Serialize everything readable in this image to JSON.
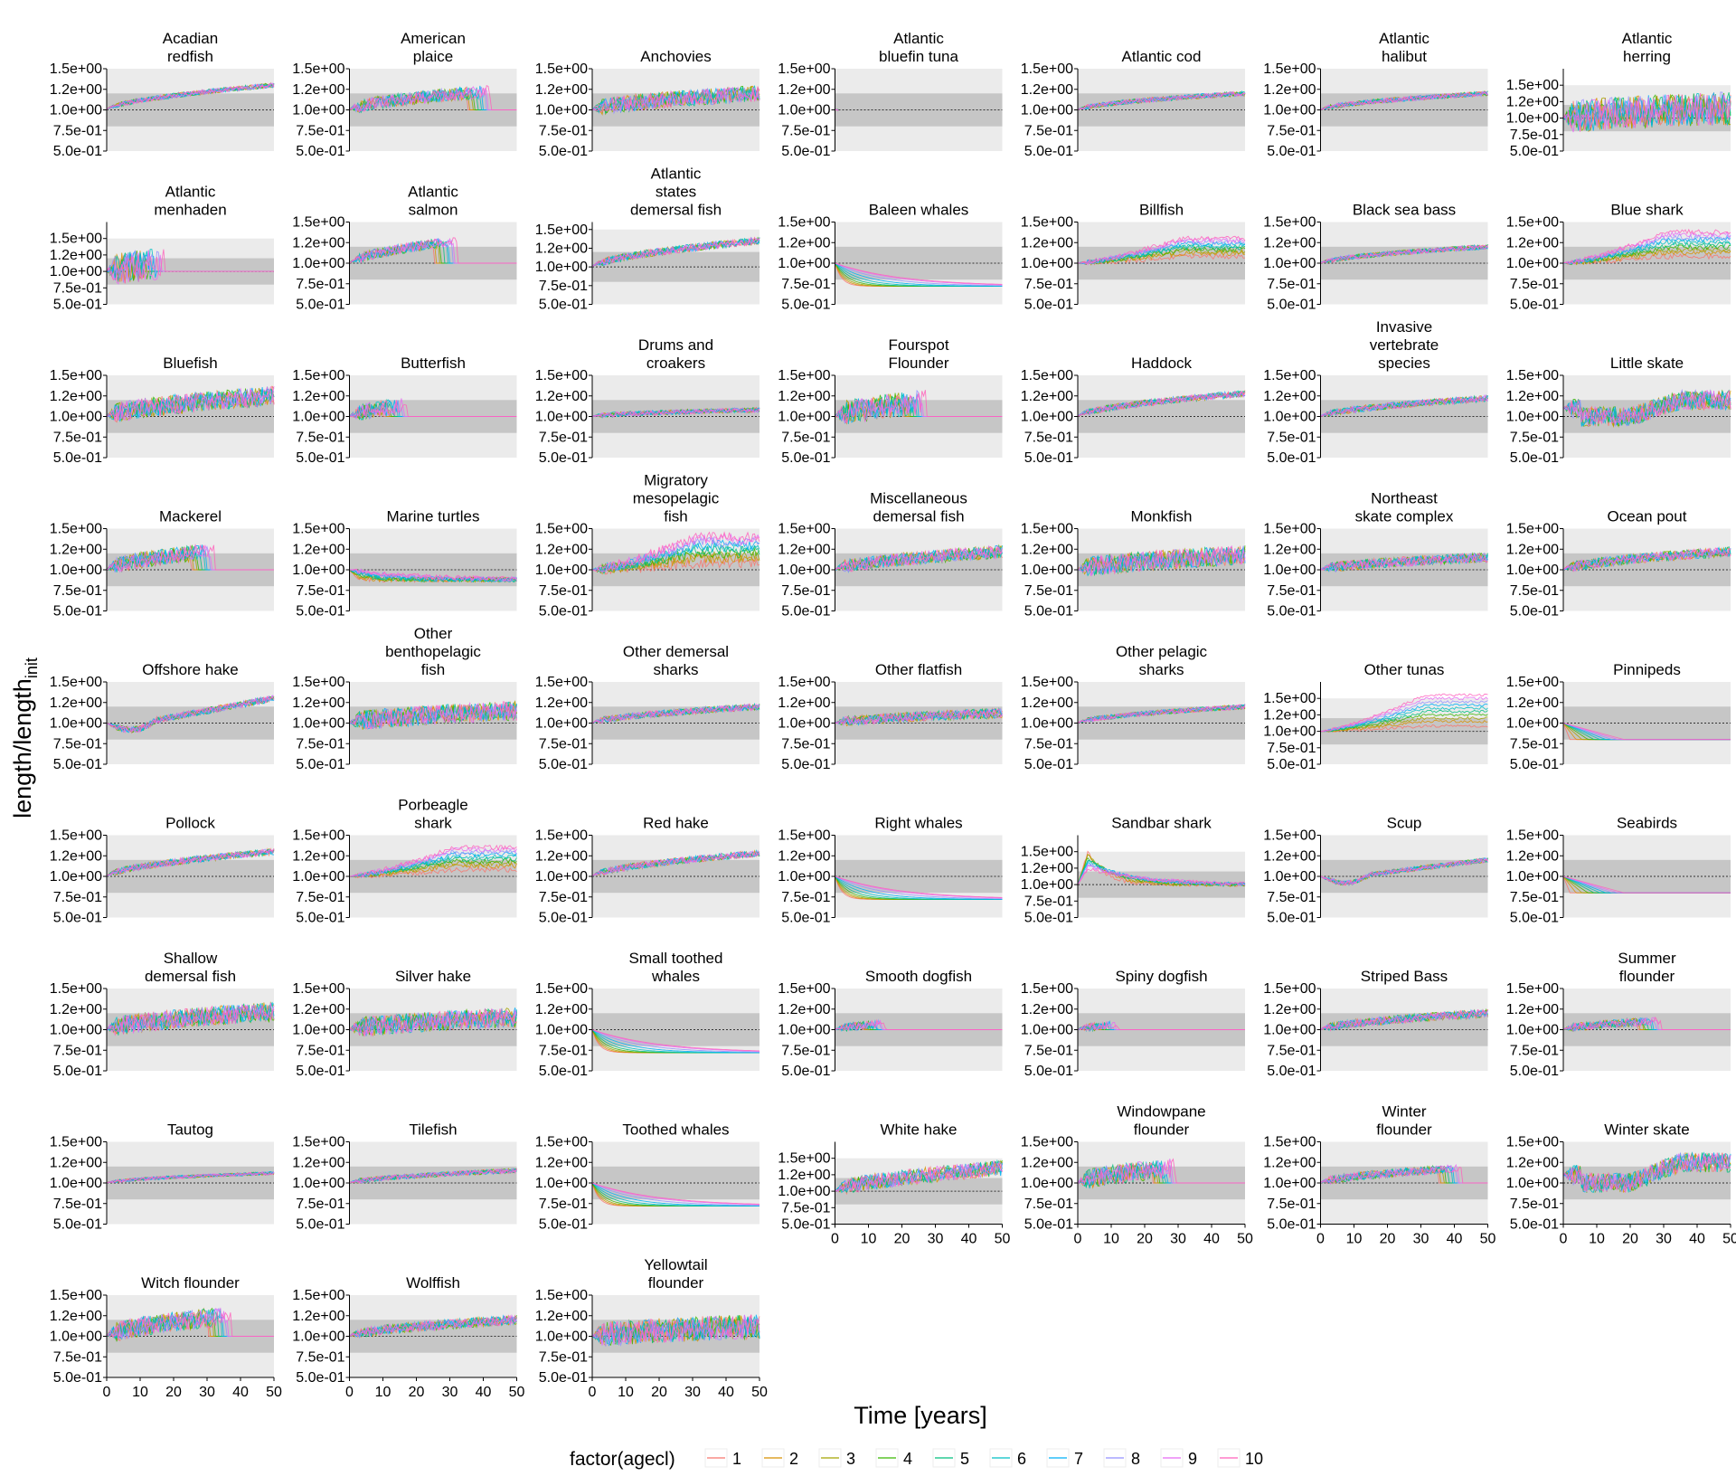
{
  "chart_data": {
    "type": "line",
    "facet": "wrap",
    "xlabel": "Time [years]",
    "ylabel_main": "length",
    "ylabel_den": "length",
    "ylabel_sub": "init",
    "xlim": [
      0,
      50
    ],
    "x_ticks": [
      "0",
      "10",
      "20",
      "30",
      "40",
      "50"
    ],
    "y_ticks_default": [
      "5.0e-01",
      "7.5e-01",
      "1.0e+00",
      "1.2e+00",
      "1.5e+00"
    ],
    "y_ticks_values": [
      0.5,
      0.75,
      1.0,
      1.25,
      1.5
    ],
    "bands": {
      "outer": [
        0.5,
        1.5
      ],
      "inner": [
        0.8,
        1.2
      ],
      "reference": 1.0
    },
    "legend": {
      "title": "factor(agecl)",
      "position": "bottom",
      "entries": [
        "1",
        "2",
        "3",
        "4",
        "5",
        "6",
        "7",
        "8",
        "9",
        "10"
      ],
      "colors": [
        "#F8766D",
        "#D89000",
        "#A3A500",
        "#39B600",
        "#00BF7D",
        "#00BFC4",
        "#00B0F6",
        "#9590FF",
        "#E76BF3",
        "#FF62BC"
      ]
    },
    "panels": [
      {
        "name": "Acadian\nredfish",
        "pattern": "rise",
        "end": 1.3,
        "noise": 0.03,
        "ylim": [
          0.5,
          1.5
        ]
      },
      {
        "name": "American\nplaice",
        "pattern": "rise_cut",
        "end": 1.25,
        "noise": 0.08,
        "cut": 35,
        "ylim": [
          0.5,
          1.5
        ]
      },
      {
        "name": "Anchovies",
        "pattern": "rise",
        "end": 1.2,
        "noise": 0.1,
        "ylim": [
          0.5,
          1.5
        ]
      },
      {
        "name": "Atlantic\nbluefin tuna",
        "pattern": "short",
        "end": 1.0,
        "noise": 0.03,
        "cut": 1,
        "ylim": [
          0.5,
          1.5
        ]
      },
      {
        "name": "Atlantic cod",
        "pattern": "rise",
        "end": 1.2,
        "noise": 0.03,
        "ylim": [
          0.5,
          1.5
        ]
      },
      {
        "name": "Atlantic\nhalibut",
        "pattern": "rise",
        "end": 1.2,
        "noise": 0.03,
        "ylim": [
          0.5,
          1.5
        ]
      },
      {
        "name": "Atlantic\nherring",
        "pattern": "rise",
        "end": 1.15,
        "noise": 0.25,
        "ylim": [
          0.5,
          1.75
        ]
      },
      {
        "name": "Atlantic\nmenhaden",
        "pattern": "rise_cut",
        "end": 1.2,
        "noise": 0.25,
        "cut": 10,
        "ylim": [
          0.5,
          1.75
        ]
      },
      {
        "name": "Atlantic\nsalmon",
        "pattern": "rise_cut",
        "end": 1.35,
        "noise": 0.06,
        "cut": 25,
        "ylim": [
          0.5,
          1.5
        ]
      },
      {
        "name": "Atlantic\nstates\ndemersal fish",
        "pattern": "rise",
        "end": 1.35,
        "noise": 0.05,
        "ylim": [
          0.5,
          1.6
        ]
      },
      {
        "name": "Baleen whales",
        "pattern": "decline",
        "end": 0.72,
        "noise": 0.0,
        "ylim": [
          0.5,
          1.5
        ]
      },
      {
        "name": "Billfish",
        "pattern": "fan_up",
        "end": 1.3,
        "noise": 0.03,
        "ylim": [
          0.5,
          1.5
        ]
      },
      {
        "name": "Black sea bass",
        "pattern": "rise",
        "end": 1.2,
        "noise": 0.03,
        "ylim": [
          0.5,
          1.5
        ]
      },
      {
        "name": "Blue shark",
        "pattern": "fan_up",
        "end": 1.38,
        "noise": 0.03,
        "ylim": [
          0.5,
          1.5
        ]
      },
      {
        "name": "Bluefish",
        "pattern": "rise",
        "end": 1.25,
        "noise": 0.12,
        "ylim": [
          0.5,
          1.5
        ]
      },
      {
        "name": "Butterfish",
        "pattern": "rise_cut",
        "end": 1.25,
        "noise": 0.1,
        "cut": 10,
        "ylim": [
          0.5,
          1.5
        ]
      },
      {
        "name": "Drums and\ncroakers",
        "pattern": "rise",
        "end": 1.08,
        "noise": 0.03,
        "ylim": [
          0.5,
          1.5
        ]
      },
      {
        "name": "Fourspot\nFlounder",
        "pattern": "rise_cut",
        "end": 1.25,
        "noise": 0.15,
        "cut": 20,
        "ylim": [
          0.5,
          1.5
        ]
      },
      {
        "name": "Haddock",
        "pattern": "rise",
        "end": 1.28,
        "noise": 0.04,
        "ylim": [
          0.5,
          1.5
        ]
      },
      {
        "name": "Invasive\nvertebrate\nspecies",
        "pattern": "rise",
        "end": 1.22,
        "noise": 0.04,
        "ylim": [
          0.5,
          1.5
        ]
      },
      {
        "name": "Little skate",
        "pattern": "gap",
        "end": 1.2,
        "noise": 0.12,
        "ylim": [
          0.5,
          1.5
        ]
      },
      {
        "name": "Mackerel",
        "pattern": "rise_cut",
        "end": 1.3,
        "noise": 0.1,
        "cut": 25,
        "ylim": [
          0.5,
          1.5
        ]
      },
      {
        "name": "Marine turtles",
        "pattern": "decline",
        "end": 0.88,
        "noise": 0.03,
        "ylim": [
          0.5,
          1.5
        ]
      },
      {
        "name": "Migratory\nmesopelagic\nfish",
        "pattern": "fan_up",
        "end": 1.4,
        "noise": 0.06,
        "ylim": [
          0.5,
          1.5
        ]
      },
      {
        "name": "Miscellaneous\ndemersal fish",
        "pattern": "rise",
        "end": 1.22,
        "noise": 0.08,
        "ylim": [
          0.5,
          1.5
        ]
      },
      {
        "name": "Monkfish",
        "pattern": "rise",
        "end": 1.18,
        "noise": 0.12,
        "ylim": [
          0.5,
          1.5
        ]
      },
      {
        "name": "Northeast\nskate complex",
        "pattern": "rise",
        "end": 1.15,
        "noise": 0.06,
        "ylim": [
          0.5,
          1.5
        ]
      },
      {
        "name": "Ocean pout",
        "pattern": "rise",
        "end": 1.22,
        "noise": 0.06,
        "ylim": [
          0.5,
          1.5
        ]
      },
      {
        "name": "Offshore hake",
        "pattern": "dip_rise",
        "end": 1.3,
        "noise": 0.04,
        "ylim": [
          0.5,
          1.5
        ]
      },
      {
        "name": "Other\nbenthopelagic\nfish",
        "pattern": "rise",
        "end": 1.15,
        "noise": 0.12,
        "ylim": [
          0.5,
          1.5
        ]
      },
      {
        "name": "Other demersal\nsharks",
        "pattern": "rise",
        "end": 1.2,
        "noise": 0.04,
        "ylim": [
          0.5,
          1.5
        ]
      },
      {
        "name": "Other flatfish",
        "pattern": "rise",
        "end": 1.12,
        "noise": 0.06,
        "ylim": [
          0.5,
          1.5
        ]
      },
      {
        "name": "Other pelagic\nsharks",
        "pattern": "rise",
        "end": 1.2,
        "noise": 0.03,
        "ylim": [
          0.5,
          1.5
        ]
      },
      {
        "name": "Other tunas",
        "pattern": "fan_up",
        "end": 1.55,
        "noise": 0.02,
        "ylim": [
          0.5,
          1.75
        ]
      },
      {
        "name": "Pinnipeds",
        "pattern": "decline_flat",
        "end": 0.8,
        "noise": 0.0,
        "ylim": [
          0.5,
          1.5
        ]
      },
      {
        "name": "Pollock",
        "pattern": "rise",
        "end": 1.3,
        "noise": 0.04,
        "ylim": [
          0.5,
          1.5
        ]
      },
      {
        "name": "Porbeagle\nshark",
        "pattern": "fan_up",
        "end": 1.35,
        "noise": 0.03,
        "ylim": [
          0.5,
          1.5
        ]
      },
      {
        "name": "Red hake",
        "pattern": "rise",
        "end": 1.28,
        "noise": 0.04,
        "ylim": [
          0.5,
          1.5
        ]
      },
      {
        "name": "Right whales",
        "pattern": "decline",
        "end": 0.72,
        "noise": 0.0,
        "ylim": [
          0.5,
          1.5
        ]
      },
      {
        "name": "Sandbar shark",
        "pattern": "peak_fall",
        "end": 1.0,
        "noise": 0.03,
        "ylim": [
          0.5,
          1.75
        ]
      },
      {
        "name": "Scup",
        "pattern": "dip_rise",
        "end": 1.2,
        "noise": 0.03,
        "ylim": [
          0.5,
          1.5
        ]
      },
      {
        "name": "Seabirds",
        "pattern": "decline_flat",
        "end": 0.8,
        "noise": 0.0,
        "ylim": [
          0.5,
          1.5
        ]
      },
      {
        "name": "Shallow\ndemersal fish",
        "pattern": "rise",
        "end": 1.22,
        "noise": 0.12,
        "ylim": [
          0.5,
          1.5
        ]
      },
      {
        "name": "Silver hake",
        "pattern": "rise",
        "end": 1.15,
        "noise": 0.12,
        "ylim": [
          0.5,
          1.5
        ]
      },
      {
        "name": "Small toothed\nwhales",
        "pattern": "decline",
        "end": 0.72,
        "noise": 0.0,
        "ylim": [
          0.5,
          1.5
        ]
      },
      {
        "name": "Smooth dogfish",
        "pattern": "rise_cut",
        "end": 1.15,
        "noise": 0.05,
        "cut": 8,
        "ylim": [
          0.5,
          1.5
        ]
      },
      {
        "name": "Spiny dogfish",
        "pattern": "rise_cut",
        "end": 1.15,
        "noise": 0.05,
        "cut": 5,
        "ylim": [
          0.5,
          1.5
        ]
      },
      {
        "name": "Striped Bass",
        "pattern": "rise",
        "end": 1.2,
        "noise": 0.05,
        "ylim": [
          0.5,
          1.5
        ]
      },
      {
        "name": "Summer\nflounder",
        "pattern": "rise_cut",
        "end": 1.15,
        "noise": 0.05,
        "cut": 22,
        "ylim": [
          0.5,
          1.5
        ]
      },
      {
        "name": "Tautog",
        "pattern": "rise",
        "end": 1.12,
        "noise": 0.02,
        "ylim": [
          0.5,
          1.5
        ]
      },
      {
        "name": "Tilefish",
        "pattern": "rise",
        "end": 1.15,
        "noise": 0.03,
        "ylim": [
          0.5,
          1.5
        ]
      },
      {
        "name": "Toothed whales",
        "pattern": "decline",
        "end": 0.72,
        "noise": 0.0,
        "ylim": [
          0.5,
          1.5
        ]
      },
      {
        "name": "White hake",
        "pattern": "rise",
        "end": 1.35,
        "noise": 0.12,
        "ylim": [
          0.5,
          1.75
        ]
      },
      {
        "name": "Windowpane\nflounder",
        "pattern": "rise_cut",
        "end": 1.25,
        "noise": 0.12,
        "cut": 22,
        "ylim": [
          0.5,
          1.5
        ]
      },
      {
        "name": "Winter\nflounder",
        "pattern": "rise_cut",
        "end": 1.2,
        "noise": 0.05,
        "cut": 35,
        "ylim": [
          0.5,
          1.5
        ]
      },
      {
        "name": "Winter skate",
        "pattern": "gap",
        "end": 1.25,
        "noise": 0.12,
        "ylim": [
          0.5,
          1.5
        ]
      },
      {
        "name": "Witch flounder",
        "pattern": "rise_cut",
        "end": 1.3,
        "noise": 0.12,
        "cut": 30,
        "ylim": [
          0.5,
          1.5
        ]
      },
      {
        "name": "Wolffish",
        "pattern": "rise",
        "end": 1.2,
        "noise": 0.06,
        "ylim": [
          0.5,
          1.5
        ]
      },
      {
        "name": "Yellowtail\nflounder",
        "pattern": "rise",
        "end": 1.12,
        "noise": 0.15,
        "ylim": [
          0.5,
          1.5
        ]
      }
    ]
  }
}
